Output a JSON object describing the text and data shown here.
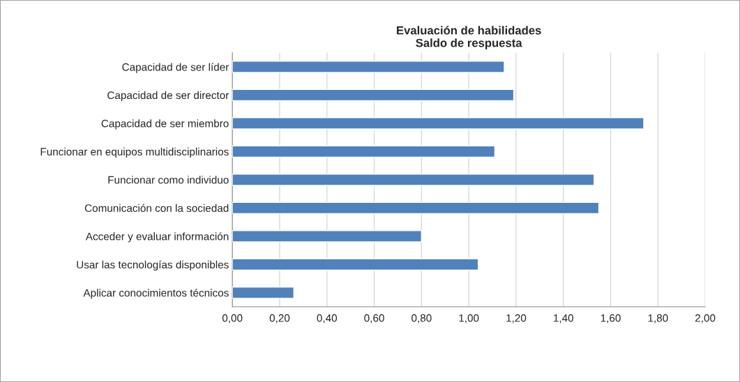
{
  "chart_data": {
    "type": "bar",
    "orientation": "horizontal",
    "title": "Evaluación de habilidades\nSaldo de respuesta",
    "categories": [
      "Capacidad de ser líder",
      "Capacidad de ser director",
      "Capacidad de ser miembro",
      "Funcionar en equipos multidisciplinarios",
      "Funcionar como individuo",
      "Comunicación con la sociedad",
      "Acceder y evaluar información",
      "Usar las tecnologías disponibles",
      "Aplicar conocimientos técnicos"
    ],
    "values": [
      1.15,
      1.19,
      1.74,
      1.11,
      1.53,
      1.55,
      0.8,
      1.04,
      0.26
    ],
    "color": "#4f81bd",
    "xlim": [
      0,
      2
    ],
    "xticks": [
      {
        "value": 0,
        "label": "0,00"
      },
      {
        "value": 0.2,
        "label": "0,20"
      },
      {
        "value": 0.4,
        "label": "0,40"
      },
      {
        "value": 0.6,
        "label": "0,60"
      },
      {
        "value": 0.8,
        "label": "0,80"
      },
      {
        "value": 1.0,
        "label": "1,00"
      },
      {
        "value": 1.2,
        "label": "1,20"
      },
      {
        "value": 1.4,
        "label": "1,40"
      },
      {
        "value": 1.6,
        "label": "1,60"
      },
      {
        "value": 1.8,
        "label": "1,80"
      },
      {
        "value": 2.0,
        "label": "2,00"
      }
    ],
    "grid": "x"
  }
}
